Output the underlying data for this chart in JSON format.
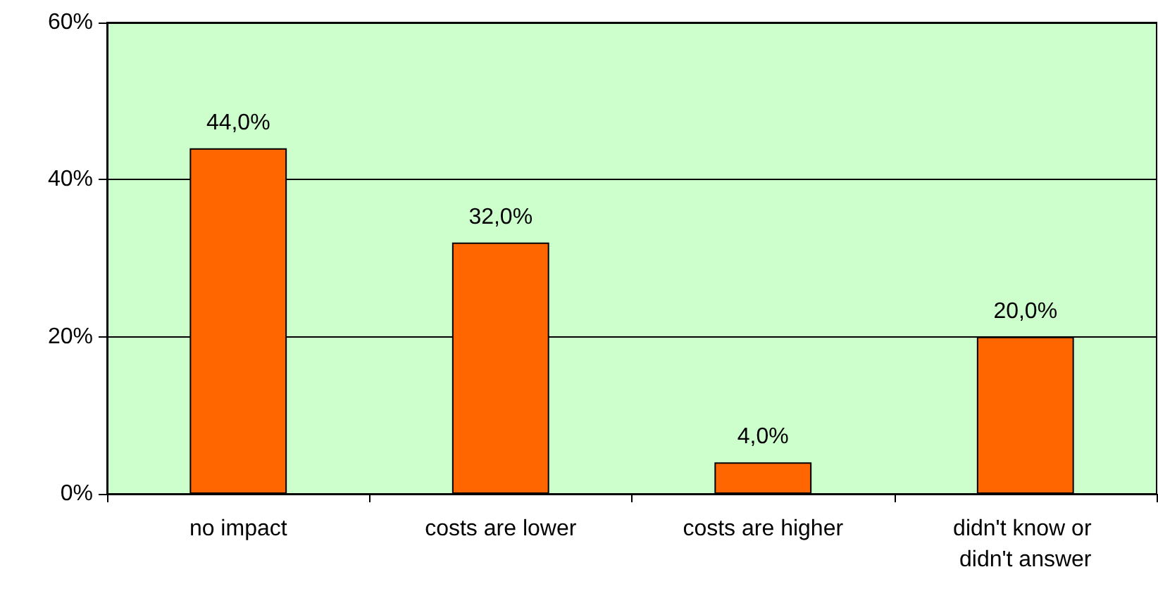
{
  "chart_data": {
    "type": "bar",
    "categories": [
      "no impact",
      "costs are lower",
      "costs are higher",
      "didn't know or didn't answer"
    ],
    "values": [
      44,
      32,
      4,
      20
    ],
    "value_labels": [
      "44,0%",
      "32,0%",
      "4,0%",
      "20,0%"
    ],
    "color": "#ff6600",
    "ylim": [
      0,
      60
    ],
    "yticks": [
      {
        "value": 0,
        "label": "0%"
      },
      {
        "value": 20,
        "label": "20%"
      },
      {
        "value": 40,
        "label": "40%"
      },
      {
        "value": 60,
        "label": "60%"
      }
    ],
    "grid": "y"
  }
}
